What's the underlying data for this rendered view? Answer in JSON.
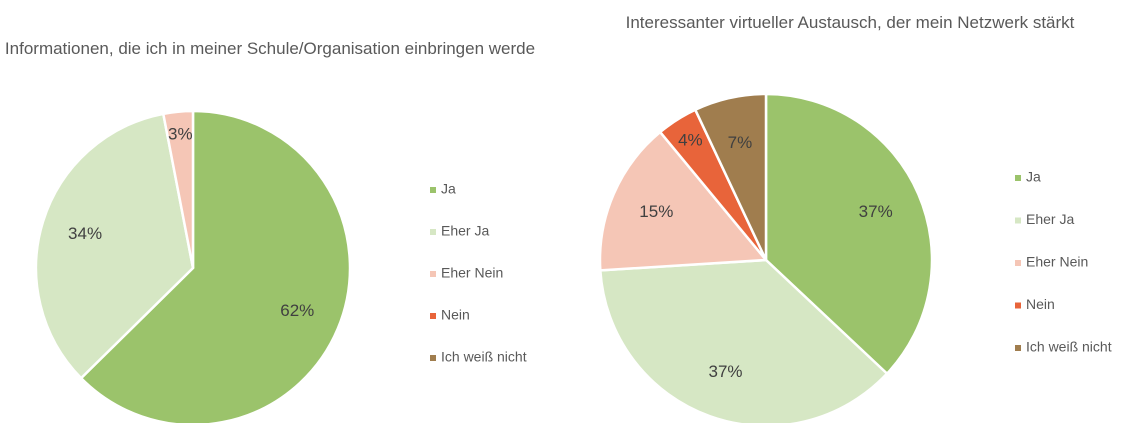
{
  "chart_data": [
    {
      "type": "pie",
      "title": "Informationen, die ich in meiner Schule/Organisation einbringen werde",
      "categories": [
        "Ja",
        "Eher Ja",
        "Eher Nein",
        "Nein",
        "Ich weiß nicht"
      ],
      "values": [
        62,
        34,
        3,
        0,
        0
      ],
      "value_labels": [
        "62%",
        "34%",
        "3%",
        null,
        null
      ],
      "colors": [
        "#9bc36b",
        "#d6e7c4",
        "#f5c6b6",
        "#e8643a",
        "#a07d4e"
      ],
      "legend": "right"
    },
    {
      "type": "pie",
      "title": "Interessanter virtueller Austausch, der mein Netzwerk stärkt",
      "categories": [
        "Ja",
        "Eher Ja",
        "Eher Nein",
        "Nein",
        "Ich weiß nicht"
      ],
      "values": [
        37,
        37,
        15,
        4,
        7
      ],
      "value_labels": [
        "37%",
        "37%",
        "15%",
        "4%",
        "7%"
      ],
      "colors": [
        "#9bc36b",
        "#d6e7c4",
        "#f5c6b6",
        "#e8643a",
        "#a07d4e"
      ],
      "legend": "right"
    }
  ]
}
